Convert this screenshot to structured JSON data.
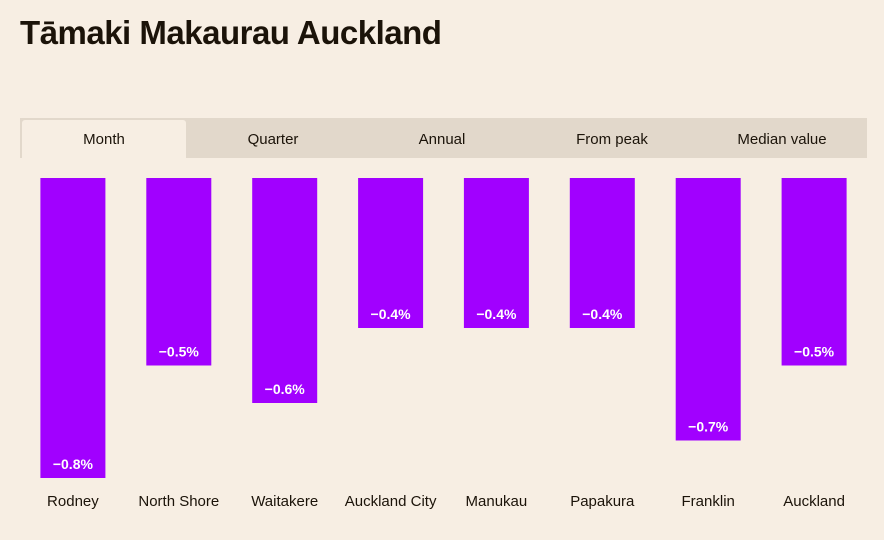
{
  "page": {
    "title": "Tāmaki Makaurau Auckland"
  },
  "tabs": [
    {
      "label": "Month",
      "active": true
    },
    {
      "label": "Quarter",
      "active": false
    },
    {
      "label": "Annual",
      "active": false
    },
    {
      "label": "From peak",
      "active": false
    },
    {
      "label": "Median value",
      "active": false
    }
  ],
  "colors": {
    "bar": "#a100ff",
    "background": "#f7eee3",
    "tab_bar": "#e2d8cb"
  },
  "chart_data": {
    "type": "bar",
    "categories": [
      "Rodney",
      "North Shore",
      "Waitakere",
      "Auckland City",
      "Manukau",
      "Papakura",
      "Franklin",
      "Auckland"
    ],
    "values": [
      -0.8,
      -0.5,
      -0.6,
      -0.4,
      -0.4,
      -0.4,
      -0.7,
      -0.5
    ],
    "value_labels": [
      "−0.8%",
      "−0.5%",
      "−0.6%",
      "−0.4%",
      "−0.4%",
      "−0.4%",
      "−0.7%",
      "−0.5%"
    ],
    "ylim": [
      -0.8,
      0
    ],
    "grid": false,
    "legend": "none"
  }
}
